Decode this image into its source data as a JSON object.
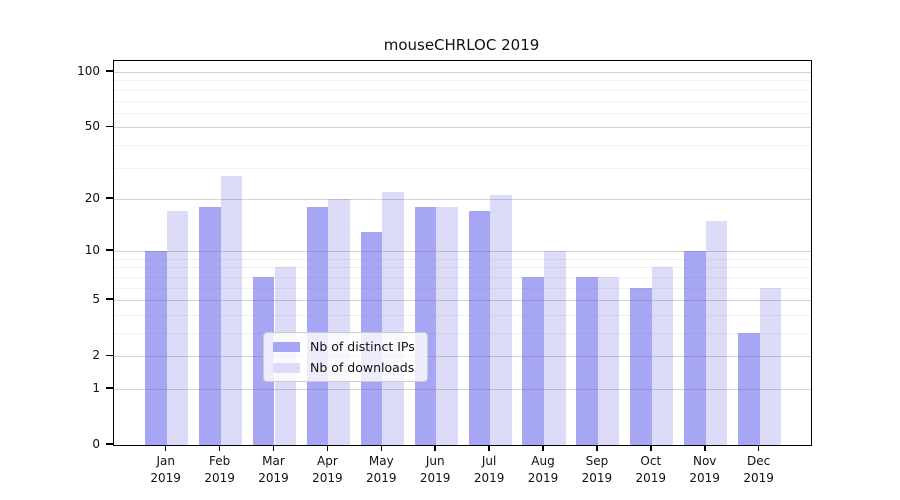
{
  "chart_data": {
    "type": "bar",
    "title": "mouseCHRLOC 2019",
    "categories": [
      "Jan",
      "Feb",
      "Mar",
      "Apr",
      "May",
      "Jun",
      "Jul",
      "Aug",
      "Sep",
      "Oct",
      "Nov",
      "Dec"
    ],
    "category_year": "2019",
    "series": [
      {
        "name": "Nb of distinct IPs",
        "color": "#a6a6f5",
        "values": [
          10,
          18,
          7,
          18,
          13,
          18,
          17,
          7,
          7,
          6,
          10,
          3
        ]
      },
      {
        "name": "Nb of downloads",
        "color": "#dcdcf9",
        "values": [
          17,
          27,
          8,
          20,
          22,
          18,
          21,
          10,
          7,
          8,
          15,
          6
        ]
      }
    ],
    "yscale": "log1p",
    "ylim": [
      0,
      101
    ],
    "yticks": [
      0,
      1,
      2,
      5,
      10,
      20,
      50,
      100
    ],
    "yticks_minor": [
      3,
      4,
      6,
      7,
      8,
      9,
      30,
      40,
      60,
      70,
      80,
      90
    ],
    "grid": true,
    "legend_position": "lower center"
  },
  "colors": {
    "bar_ips": "#a6a6f5",
    "bar_downloads": "#dcdcf9",
    "axis": "#000000",
    "grid_major": "rgba(110,110,110,0.30)",
    "grid_minor": "rgba(128,128,128,0.11)",
    "text": "#111111",
    "legend_border": "#cccccc",
    "legend_bg": "rgba(255,255,255,0.8)"
  }
}
